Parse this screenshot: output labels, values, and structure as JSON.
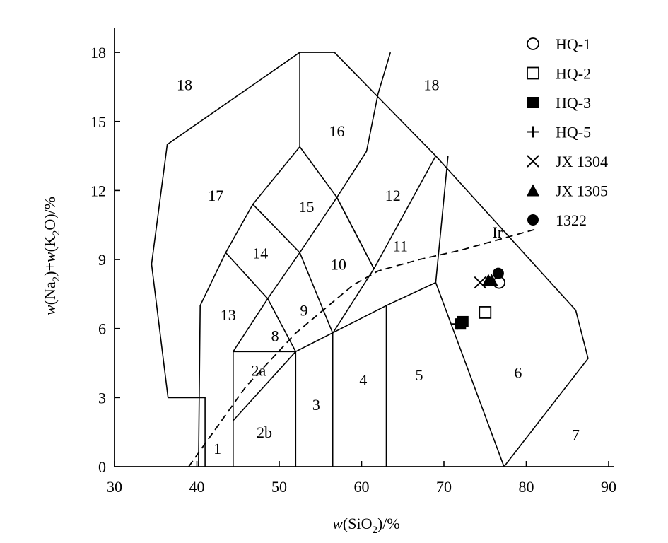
{
  "chart_data": {
    "type": "scatter",
    "xlabel": {
      "pre": "w",
      "mid": "(SiO",
      "sub": "2",
      "post": ")/%"
    },
    "ylabel": {
      "p1": "w",
      "p2": "(Na",
      "s1": "2",
      "p3": ")+",
      "p4": "w",
      "p5": "(K",
      "s2": "2",
      "p6": "O)/%"
    },
    "xlim": [
      30,
      90
    ],
    "ylim": [
      0,
      19.5
    ],
    "xticks": [
      30,
      40,
      50,
      60,
      70,
      80,
      90
    ],
    "yticks": [
      0,
      3,
      6,
      9,
      12,
      15,
      18
    ],
    "tick_labels": {
      "x": [
        "30",
        "40",
        "50",
        "60",
        "70",
        "80",
        "90"
      ],
      "y": [
        "0",
        "3",
        "6",
        "9",
        "12",
        "15",
        "18"
      ]
    },
    "field_boundaries": [
      [
        [
          36.5,
          3
        ],
        [
          34.5,
          8.8
        ],
        [
          36.4,
          14
        ],
        [
          52.5,
          18
        ],
        [
          56.7,
          18
        ],
        [
          69,
          13.5
        ],
        [
          86,
          6.8
        ],
        [
          87.5,
          4.7
        ],
        [
          77.3,
          0
        ]
      ],
      [
        [
          36.5,
          3
        ],
        [
          41,
          3
        ],
        [
          41,
          0
        ]
      ],
      [
        [
          40.2,
          0
        ],
        [
          40.4,
          7
        ],
        [
          43.5,
          9.3
        ],
        [
          46.8,
          11.4
        ],
        [
          52.5,
          13.9
        ],
        [
          52.5,
          18
        ]
      ],
      [
        [
          44.4,
          0
        ],
        [
          44.4,
          5
        ],
        [
          52,
          5
        ],
        [
          52,
          0
        ]
      ],
      [
        [
          44.4,
          2
        ],
        [
          52,
          5
        ],
        [
          63,
          7
        ],
        [
          69,
          8
        ],
        [
          77.3,
          0
        ]
      ],
      [
        [
          69,
          8
        ],
        [
          70.5,
          13.5
        ]
      ],
      [
        [
          56.5,
          0
        ],
        [
          56.5,
          5.8
        ],
        [
          61.5,
          8.6
        ],
        [
          69,
          13.5
        ]
      ],
      [
        [
          63,
          0
        ],
        [
          63,
          7
        ]
      ],
      [
        [
          44.4,
          5
        ],
        [
          48.6,
          7.3
        ],
        [
          52.5,
          9.3
        ],
        [
          57,
          11.7
        ],
        [
          61.5,
          8.6
        ]
      ],
      [
        [
          43.5,
          9.3
        ],
        [
          48.6,
          7.3
        ],
        [
          52,
          5
        ]
      ],
      [
        [
          46.8,
          11.4
        ],
        [
          52.5,
          9.3
        ],
        [
          56.5,
          5.8
        ]
      ],
      [
        [
          52.5,
          13.9
        ],
        [
          57,
          11.7
        ],
        [
          61.5,
          8.6
        ]
      ],
      [
        [
          57,
          11.7
        ],
        [
          60.6,
          13.7
        ],
        [
          62,
          16.2
        ],
        [
          63.5,
          18
        ]
      ]
    ],
    "ir_line": [
      [
        39,
        0
      ],
      [
        41,
        1
      ],
      [
        46,
        3.5
      ],
      [
        52,
        5.8
      ],
      [
        56,
        7
      ],
      [
        59,
        7.9
      ],
      [
        62,
        8.5
      ],
      [
        67,
        9
      ],
      [
        72,
        9.4
      ],
      [
        76,
        9.8
      ],
      [
        81,
        10.3
      ]
    ],
    "field_labels": [
      {
        "text": "1",
        "x": 42.5,
        "y": 0.8
      },
      {
        "text": "2a",
        "x": 47.5,
        "y": 4.2
      },
      {
        "text": "2b",
        "x": 48.2,
        "y": 1.5
      },
      {
        "text": "3",
        "x": 54.5,
        "y": 2.7
      },
      {
        "text": "4",
        "x": 60.2,
        "y": 3.8
      },
      {
        "text": "5",
        "x": 67,
        "y": 4
      },
      {
        "text": "6",
        "x": 79,
        "y": 4.1
      },
      {
        "text": "7",
        "x": 86,
        "y": 1.4
      },
      {
        "text": "8",
        "x": 49.5,
        "y": 5.7
      },
      {
        "text": "9",
        "x": 53,
        "y": 6.8
      },
      {
        "text": "10",
        "x": 57.2,
        "y": 8.8
      },
      {
        "text": "11",
        "x": 64.7,
        "y": 9.6
      },
      {
        "text": "12",
        "x": 63.8,
        "y": 11.8
      },
      {
        "text": "13",
        "x": 43.8,
        "y": 6.6
      },
      {
        "text": "14",
        "x": 47.7,
        "y": 9.3
      },
      {
        "text": "15",
        "x": 53.3,
        "y": 11.3
      },
      {
        "text": "16",
        "x": 57,
        "y": 14.6
      },
      {
        "text": "17",
        "x": 42.3,
        "y": 11.8
      },
      {
        "text": "18",
        "x": 38.5,
        "y": 16.6
      },
      {
        "text": "18",
        "x": 68.5,
        "y": 16.6
      },
      {
        "text": "Ir",
        "x": 76.5,
        "y": 10.2
      }
    ],
    "series": [
      {
        "name": "HQ-1",
        "marker": "circle-open",
        "points": [
          [
            76.7,
            8.0
          ]
        ]
      },
      {
        "name": "HQ-2",
        "marker": "square-open",
        "points": [
          [
            75,
            6.7
          ]
        ]
      },
      {
        "name": "HQ-3",
        "marker": "square-filled",
        "points": [
          [
            72.3,
            6.3
          ],
          [
            72,
            6.2
          ]
        ]
      },
      {
        "name": "HQ-5",
        "marker": "plus",
        "points": [
          [
            71.6,
            6.2
          ]
        ]
      },
      {
        "name": "JX 1304",
        "marker": "x",
        "points": [
          [
            74.4,
            8.0
          ]
        ]
      },
      {
        "name": "JX 1305",
        "marker": "triangle-filled",
        "points": [
          [
            75.4,
            8.1
          ],
          [
            75.8,
            8.1
          ]
        ]
      },
      {
        "name": "1322",
        "marker": "circle-filled",
        "points": [
          [
            76.6,
            8.4
          ]
        ]
      }
    ],
    "legend_position": "top-right",
    "grid": false
  }
}
